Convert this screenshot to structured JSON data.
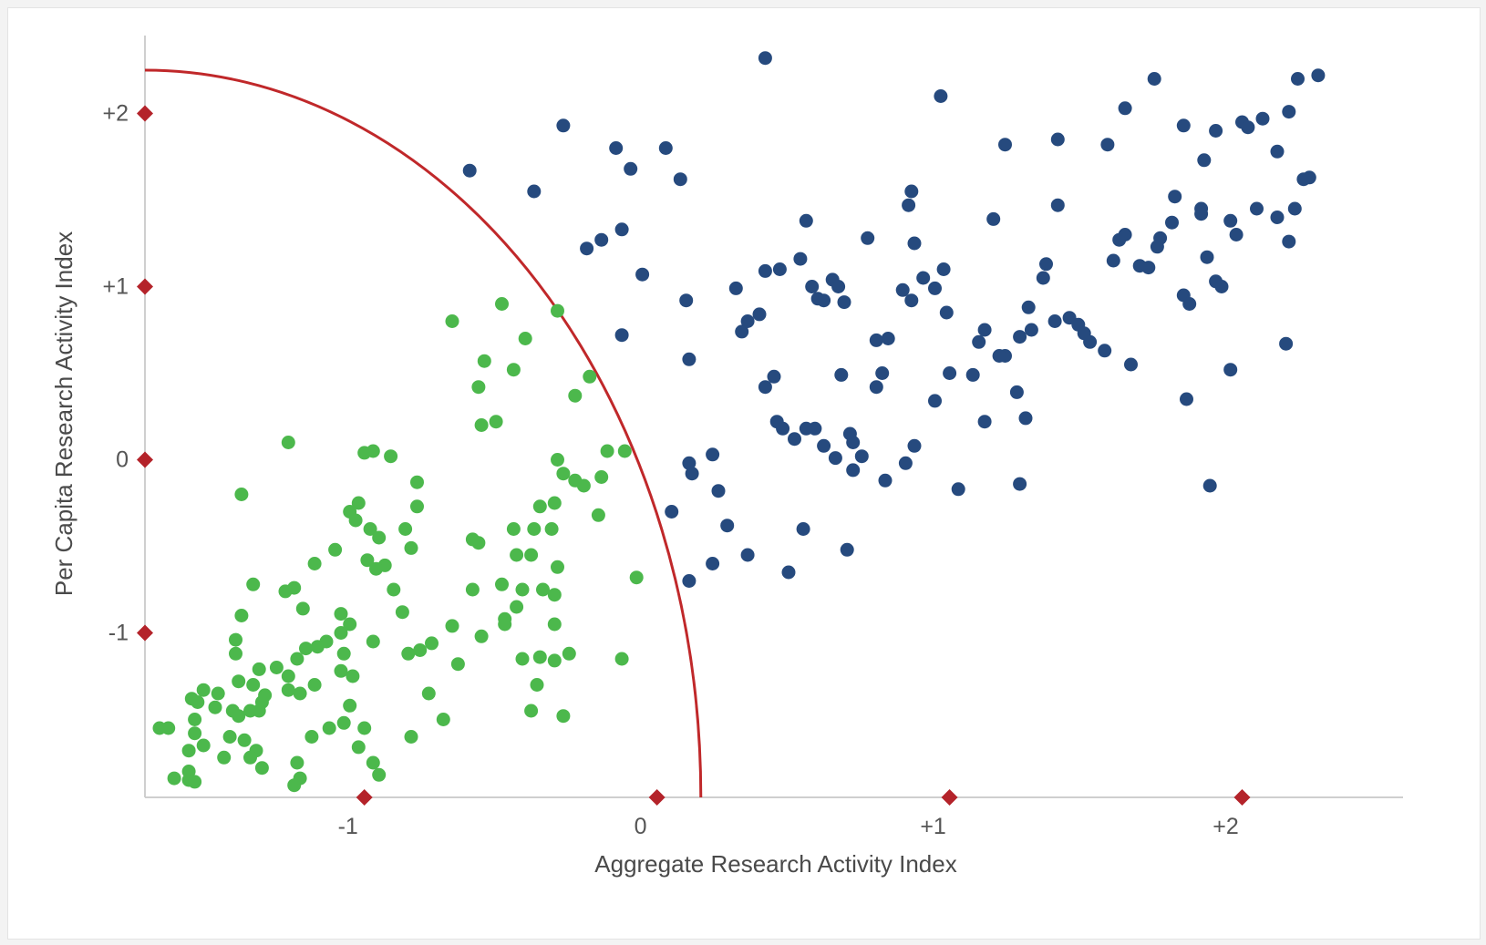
{
  "chart_data": {
    "type": "scatter",
    "title": "",
    "xlabel": "Aggregate Research Activity Index",
    "ylabel": "Per Capita Research Activity Index",
    "xlim": [
      -1.75,
      2.55
    ],
    "ylim": [
      -1.95,
      2.45
    ],
    "grid": false,
    "legend": "none",
    "x_ticks": [
      {
        "value": -1,
        "label": "-1"
      },
      {
        "value": 0,
        "label": "0"
      },
      {
        "value": 1,
        "label": "+1"
      },
      {
        "value": 2,
        "label": "+2"
      }
    ],
    "y_ticks": [
      {
        "value": 2,
        "label": "+2"
      },
      {
        "value": 1,
        "label": "+1"
      },
      {
        "value": 0,
        "label": "0"
      },
      {
        "value": -1,
        "label": "-1"
      }
    ],
    "x_markers": [
      -1,
      0,
      1,
      2
    ],
    "y_markers": [
      2,
      1,
      0,
      -1
    ],
    "boundary_curve": {
      "center": [
        -1.75,
        -1.95
      ],
      "radius_x": 1.9,
      "radius_y": 4.2,
      "color": "#c0282a"
    },
    "colors": {
      "green": "#4cb84c",
      "blue": "#264a7e",
      "marker": "#b4232a",
      "axis": "#cfcfcf"
    },
    "series": [
      {
        "color": "#4cb84c",
        "points": [
          [
            -0.7,
            0.8
          ],
          [
            -0.53,
            0.9
          ],
          [
            -0.34,
            0.86
          ],
          [
            -0.45,
            0.7
          ],
          [
            -0.59,
            0.57
          ],
          [
            -0.49,
            0.52
          ],
          [
            -0.61,
            0.42
          ],
          [
            -0.23,
            0.48
          ],
          [
            -0.28,
            0.37
          ],
          [
            -0.6,
            0.2
          ],
          [
            -0.55,
            0.22
          ],
          [
            -0.17,
            0.05
          ],
          [
            -0.11,
            0.05
          ],
          [
            -0.34,
            0.0
          ],
          [
            -0.32,
            -0.08
          ],
          [
            -0.28,
            -0.12
          ],
          [
            -0.19,
            -0.1
          ],
          [
            -0.25,
            -0.15
          ],
          [
            -0.35,
            -0.25
          ],
          [
            -0.2,
            -0.32
          ],
          [
            -0.4,
            -0.27
          ],
          [
            -0.42,
            -0.4
          ],
          [
            -0.36,
            -0.4
          ],
          [
            -0.49,
            -0.4
          ],
          [
            -0.61,
            -0.48
          ],
          [
            -0.63,
            -0.46
          ],
          [
            -0.48,
            -0.55
          ],
          [
            -0.43,
            -0.55
          ],
          [
            -0.34,
            -0.62
          ],
          [
            -0.07,
            -0.68
          ],
          [
            -0.53,
            -0.72
          ],
          [
            -0.46,
            -0.75
          ],
          [
            -0.39,
            -0.75
          ],
          [
            -0.63,
            -0.75
          ],
          [
            -0.35,
            -0.78
          ],
          [
            -0.48,
            -0.85
          ],
          [
            -0.52,
            -0.92
          ],
          [
            -0.52,
            -0.95
          ],
          [
            -0.35,
            -0.95
          ],
          [
            -0.7,
            -0.96
          ],
          [
            -0.6,
            -1.02
          ],
          [
            -0.77,
            -1.06
          ],
          [
            -0.81,
            -1.1
          ],
          [
            -0.85,
            -1.12
          ],
          [
            -0.46,
            -1.15
          ],
          [
            -0.4,
            -1.14
          ],
          [
            -0.35,
            -1.16
          ],
          [
            -0.3,
            -1.12
          ],
          [
            -0.12,
            -1.15
          ],
          [
            -0.68,
            -1.18
          ],
          [
            -0.41,
            -1.3
          ],
          [
            -0.43,
            -1.45
          ],
          [
            -0.32,
            -1.48
          ],
          [
            -0.78,
            -1.35
          ],
          [
            -0.73,
            -1.5
          ],
          [
            -0.84,
            -1.6
          ],
          [
            -0.97,
            0.05
          ],
          [
            -1.0,
            0.04
          ],
          [
            -0.91,
            0.02
          ],
          [
            -1.26,
            0.1
          ],
          [
            -0.82,
            -0.13
          ],
          [
            -1.02,
            -0.25
          ],
          [
            -0.82,
            -0.27
          ],
          [
            -1.05,
            -0.3
          ],
          [
            -1.03,
            -0.35
          ],
          [
            -0.86,
            -0.4
          ],
          [
            -0.98,
            -0.4
          ],
          [
            -0.95,
            -0.45
          ],
          [
            -1.1,
            -0.52
          ],
          [
            -0.84,
            -0.51
          ],
          [
            -1.42,
            -0.2
          ],
          [
            -0.99,
            -0.58
          ],
          [
            -0.93,
            -0.61
          ],
          [
            -0.96,
            -0.63
          ],
          [
            -1.17,
            -0.6
          ],
          [
            -0.9,
            -0.75
          ],
          [
            -1.38,
            -0.72
          ],
          [
            -1.24,
            -0.74
          ],
          [
            -1.27,
            -0.76
          ],
          [
            -0.87,
            -0.88
          ],
          [
            -1.42,
            -0.9
          ],
          [
            -1.08,
            -0.89
          ],
          [
            -1.21,
            -0.86
          ],
          [
            -1.05,
            -0.95
          ],
          [
            -1.08,
            -1.0
          ],
          [
            -0.97,
            -1.05
          ],
          [
            -1.13,
            -1.05
          ],
          [
            -1.16,
            -1.08
          ],
          [
            -1.07,
            -1.12
          ],
          [
            -1.2,
            -1.09
          ],
          [
            -1.44,
            -1.04
          ],
          [
            -1.44,
            -1.12
          ],
          [
            -1.23,
            -1.15
          ],
          [
            -1.3,
            -1.2
          ],
          [
            -1.36,
            -1.21
          ],
          [
            -1.04,
            -1.25
          ],
          [
            -1.08,
            -1.22
          ],
          [
            -1.26,
            -1.25
          ],
          [
            -1.38,
            -1.3
          ],
          [
            -1.43,
            -1.28
          ],
          [
            -1.17,
            -1.3
          ],
          [
            -1.26,
            -1.33
          ],
          [
            -1.22,
            -1.35
          ],
          [
            -1.34,
            -1.36
          ],
          [
            -1.35,
            -1.4
          ],
          [
            -1.45,
            -1.45
          ],
          [
            -1.5,
            -1.35
          ],
          [
            -1.55,
            -1.33
          ],
          [
            -1.59,
            -1.38
          ],
          [
            -1.57,
            -1.4
          ],
          [
            -1.51,
            -1.43
          ],
          [
            -1.36,
            -1.45
          ],
          [
            -1.43,
            -1.48
          ],
          [
            -1.39,
            -1.45
          ],
          [
            -1.05,
            -1.42
          ],
          [
            -1.58,
            -1.5
          ],
          [
            -1.07,
            -1.52
          ],
          [
            -1.0,
            -1.55
          ],
          [
            -1.12,
            -1.55
          ],
          [
            -1.67,
            -1.55
          ],
          [
            -1.7,
            -1.55
          ],
          [
            -1.58,
            -1.58
          ],
          [
            -1.46,
            -1.6
          ],
          [
            -1.41,
            -1.62
          ],
          [
            -1.55,
            -1.65
          ],
          [
            -1.37,
            -1.68
          ],
          [
            -1.18,
            -1.6
          ],
          [
            -1.02,
            -1.66
          ],
          [
            -1.6,
            -1.68
          ],
          [
            -1.48,
            -1.72
          ],
          [
            -1.23,
            -1.75
          ],
          [
            -1.35,
            -1.78
          ],
          [
            -1.39,
            -1.72
          ],
          [
            -0.97,
            -1.75
          ],
          [
            -1.6,
            -1.8
          ],
          [
            -1.22,
            -1.84
          ],
          [
            -0.95,
            -1.82
          ],
          [
            -1.65,
            -1.84
          ],
          [
            -1.6,
            -1.85
          ],
          [
            -1.58,
            -1.86
          ],
          [
            -1.24,
            -1.88
          ]
        ]
      },
      {
        "color": "#264a7e",
        "points": [
          [
            0.37,
            2.32
          ],
          [
            -0.32,
            1.93
          ],
          [
            0.97,
            2.1
          ],
          [
            1.7,
            2.2
          ],
          [
            2.26,
            2.22
          ],
          [
            2.19,
            2.2
          ],
          [
            -0.64,
            1.67
          ],
          [
            -0.42,
            1.55
          ],
          [
            -0.14,
            1.8
          ],
          [
            -0.09,
            1.68
          ],
          [
            0.03,
            1.8
          ],
          [
            0.08,
            1.62
          ],
          [
            1.6,
            2.03
          ],
          [
            1.8,
            1.93
          ],
          [
            1.19,
            1.82
          ],
          [
            1.37,
            1.85
          ],
          [
            1.54,
            1.82
          ],
          [
            2.0,
            1.95
          ],
          [
            2.02,
            1.92
          ],
          [
            2.07,
            1.97
          ],
          [
            2.16,
            2.01
          ],
          [
            1.91,
            1.9
          ],
          [
            1.87,
            1.73
          ],
          [
            2.12,
            1.78
          ],
          [
            2.23,
            1.63
          ],
          [
            2.21,
            1.62
          ],
          [
            -0.24,
            1.22
          ],
          [
            -0.19,
            1.27
          ],
          [
            -0.12,
            1.33
          ],
          [
            -0.05,
            1.07
          ],
          [
            -0.12,
            0.72
          ],
          [
            0.1,
            0.92
          ],
          [
            0.11,
            0.58
          ],
          [
            0.27,
            0.99
          ],
          [
            0.29,
            0.74
          ],
          [
            0.31,
            0.8
          ],
          [
            0.35,
            0.84
          ],
          [
            0.37,
            1.09
          ],
          [
            0.42,
            1.1
          ],
          [
            0.49,
            1.16
          ],
          [
            0.51,
            1.38
          ],
          [
            0.53,
            1.0
          ],
          [
            0.55,
            0.93
          ],
          [
            0.57,
            0.92
          ],
          [
            0.6,
            1.04
          ],
          [
            0.62,
            1.0
          ],
          [
            0.64,
            0.91
          ],
          [
            0.72,
            1.28
          ],
          [
            0.75,
            0.69
          ],
          [
            0.79,
            0.7
          ],
          [
            0.84,
            0.98
          ],
          [
            0.87,
            0.92
          ],
          [
            0.86,
            1.47
          ],
          [
            0.87,
            1.55
          ],
          [
            0.88,
            1.25
          ],
          [
            0.91,
            1.05
          ],
          [
            0.95,
            0.99
          ],
          [
            0.98,
            1.1
          ],
          [
            0.99,
            0.85
          ],
          [
            1.1,
            0.68
          ],
          [
            1.12,
            0.75
          ],
          [
            1.15,
            1.39
          ],
          [
            1.19,
            0.6
          ],
          [
            1.24,
            0.71
          ],
          [
            1.27,
            0.88
          ],
          [
            1.28,
            0.75
          ],
          [
            1.32,
            1.05
          ],
          [
            1.33,
            1.13
          ],
          [
            1.36,
            0.8
          ],
          [
            1.37,
            1.47
          ],
          [
            1.41,
            0.82
          ],
          [
            1.44,
            0.78
          ],
          [
            1.46,
            0.73
          ],
          [
            1.48,
            0.68
          ],
          [
            1.53,
            0.63
          ],
          [
            1.56,
            1.15
          ],
          [
            1.58,
            1.27
          ],
          [
            1.6,
            1.3
          ],
          [
            1.65,
            1.12
          ],
          [
            1.68,
            1.11
          ],
          [
            1.71,
            1.23
          ],
          [
            1.72,
            1.28
          ],
          [
            1.76,
            1.37
          ],
          [
            1.77,
            1.52
          ],
          [
            1.8,
            0.95
          ],
          [
            1.82,
            0.9
          ],
          [
            1.86,
            1.42
          ],
          [
            1.86,
            1.45
          ],
          [
            1.88,
            1.17
          ],
          [
            1.91,
            1.03
          ],
          [
            1.93,
            1.0
          ],
          [
            1.96,
            1.38
          ],
          [
            1.98,
            1.3
          ],
          [
            2.05,
            1.45
          ],
          [
            2.12,
            1.4
          ],
          [
            2.16,
            1.26
          ],
          [
            2.15,
            0.67
          ],
          [
            2.18,
            1.45
          ],
          [
            1.62,
            0.55
          ],
          [
            1.96,
            0.52
          ],
          [
            1.81,
            0.35
          ],
          [
            1.89,
            -0.15
          ],
          [
            0.05,
            -0.3
          ],
          [
            0.11,
            -0.02
          ],
          [
            0.12,
            -0.08
          ],
          [
            0.19,
            0.03
          ],
          [
            0.21,
            -0.18
          ],
          [
            0.24,
            -0.38
          ],
          [
            0.19,
            -0.6
          ],
          [
            0.11,
            -0.7
          ],
          [
            0.31,
            -0.55
          ],
          [
            0.45,
            -0.65
          ],
          [
            0.5,
            -0.4
          ],
          [
            0.65,
            -0.52
          ],
          [
            0.37,
            0.42
          ],
          [
            0.4,
            0.48
          ],
          [
            0.41,
            0.22
          ],
          [
            0.43,
            0.18
          ],
          [
            0.47,
            0.12
          ],
          [
            0.51,
            0.18
          ],
          [
            0.54,
            0.18
          ],
          [
            0.57,
            0.08
          ],
          [
            0.61,
            0.01
          ],
          [
            0.66,
            0.15
          ],
          [
            0.67,
            0.1
          ],
          [
            0.67,
            -0.06
          ],
          [
            0.7,
            0.02
          ],
          [
            0.75,
            0.42
          ],
          [
            0.77,
            0.5
          ],
          [
            0.78,
            -0.12
          ],
          [
            0.85,
            -0.02
          ],
          [
            0.88,
            0.08
          ],
          [
            0.95,
            0.34
          ],
          [
            1.0,
            0.5
          ],
          [
            1.03,
            -0.17
          ],
          [
            1.08,
            0.49
          ],
          [
            1.12,
            0.22
          ],
          [
            1.17,
            0.6
          ],
          [
            1.23,
            0.39
          ],
          [
            1.26,
            0.24
          ],
          [
            1.24,
            -0.14
          ],
          [
            0.63,
            0.49
          ]
        ]
      }
    ]
  }
}
